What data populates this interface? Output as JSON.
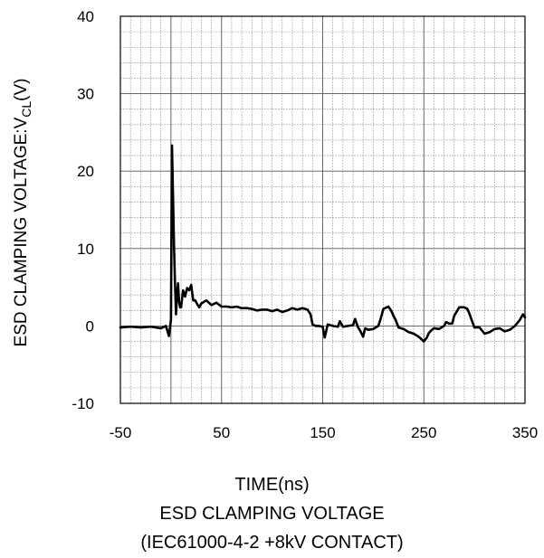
{
  "chart_data": {
    "type": "line",
    "title": "",
    "ylabel": {
      "prefix": "ESD CLAMPING VOLTAGE:V",
      "subscript": "CL",
      "suffix": "(V)"
    },
    "xlabel": {
      "line1": "TIME(ns)",
      "line2": "ESD CLAMPING VOLTAGE",
      "line3": "(IEC61000-4-2   +8kV CONTACT)"
    },
    "xlim": [
      -50,
      350
    ],
    "ylim": [
      -10,
      40
    ],
    "x_ticks": [
      -50,
      50,
      150,
      250,
      350
    ],
    "y_ticks": [
      -10,
      0,
      10,
      20,
      30,
      40
    ],
    "x_major_step": 100,
    "x_minor_step": 10,
    "y_major_step": 10,
    "y_minor_step": 2,
    "grid": true,
    "line_color": "#000000",
    "series": [
      {
        "x": [
          -50,
          -40,
          -30,
          -20,
          -10,
          -5,
          -2,
          0,
          1,
          2,
          3,
          4,
          5,
          6,
          7,
          8,
          9,
          10,
          12,
          14,
          16,
          18,
          20,
          22,
          24,
          26,
          28,
          30,
          35,
          40,
          45,
          50,
          55,
          60,
          65,
          70,
          75,
          80,
          85,
          90,
          95,
          100,
          105,
          110,
          115,
          120,
          125,
          130,
          135,
          138,
          140,
          143,
          146,
          150,
          152,
          155,
          160,
          165,
          167,
          170,
          175,
          180,
          182,
          185,
          187,
          190,
          192,
          195,
          200,
          205,
          207,
          210,
          215,
          218,
          220,
          222,
          225,
          230,
          235,
          240,
          245,
          250,
          253,
          255,
          258,
          260,
          265,
          270,
          272,
          275,
          278,
          280,
          285,
          290,
          293,
          295,
          298,
          300,
          305,
          310,
          315,
          320,
          325,
          330,
          335,
          340,
          345,
          348,
          350
        ],
        "y": [
          -0.2,
          -0.1,
          -0.2,
          -0.1,
          -0.3,
          0,
          -1.3,
          0.8,
          23.3,
          17,
          10.5,
          5.5,
          1.5,
          4,
          5.5,
          3.2,
          2.4,
          2.4,
          4.6,
          3.8,
          4.9,
          4.6,
          5.3,
          3.3,
          3.3,
          2.8,
          2.4,
          2.9,
          3.3,
          2.7,
          3.0,
          2.5,
          2.5,
          2.4,
          2.5,
          2.3,
          2.3,
          2.2,
          2.0,
          2.1,
          2.1,
          1.9,
          2.1,
          1.8,
          2.0,
          2.3,
          2.1,
          2.3,
          2.1,
          1.5,
          0.2,
          0.0,
          0.0,
          -0.1,
          -1.5,
          0.2,
          0.0,
          -0.1,
          0.6,
          -0.1,
          0.0,
          0.1,
          0.9,
          -0.2,
          -0.6,
          -1.4,
          -0.3,
          -0.5,
          -0.4,
          0.0,
          0.8,
          2.2,
          2.5,
          1.9,
          1.3,
          0.8,
          -0.2,
          -0.4,
          -0.8,
          -1.0,
          -1.4,
          -2.0,
          -1.5,
          -0.9,
          -0.5,
          -0.3,
          -0.4,
          0.0,
          0.5,
          0.3,
          0.3,
          1.3,
          2.4,
          2.4,
          2.2,
          1.6,
          0.5,
          -0.2,
          -0.2,
          -1.0,
          -0.8,
          -0.4,
          -0.3,
          -0.7,
          -0.5,
          0.0,
          0.8,
          1.5,
          1.1
        ]
      }
    ]
  }
}
